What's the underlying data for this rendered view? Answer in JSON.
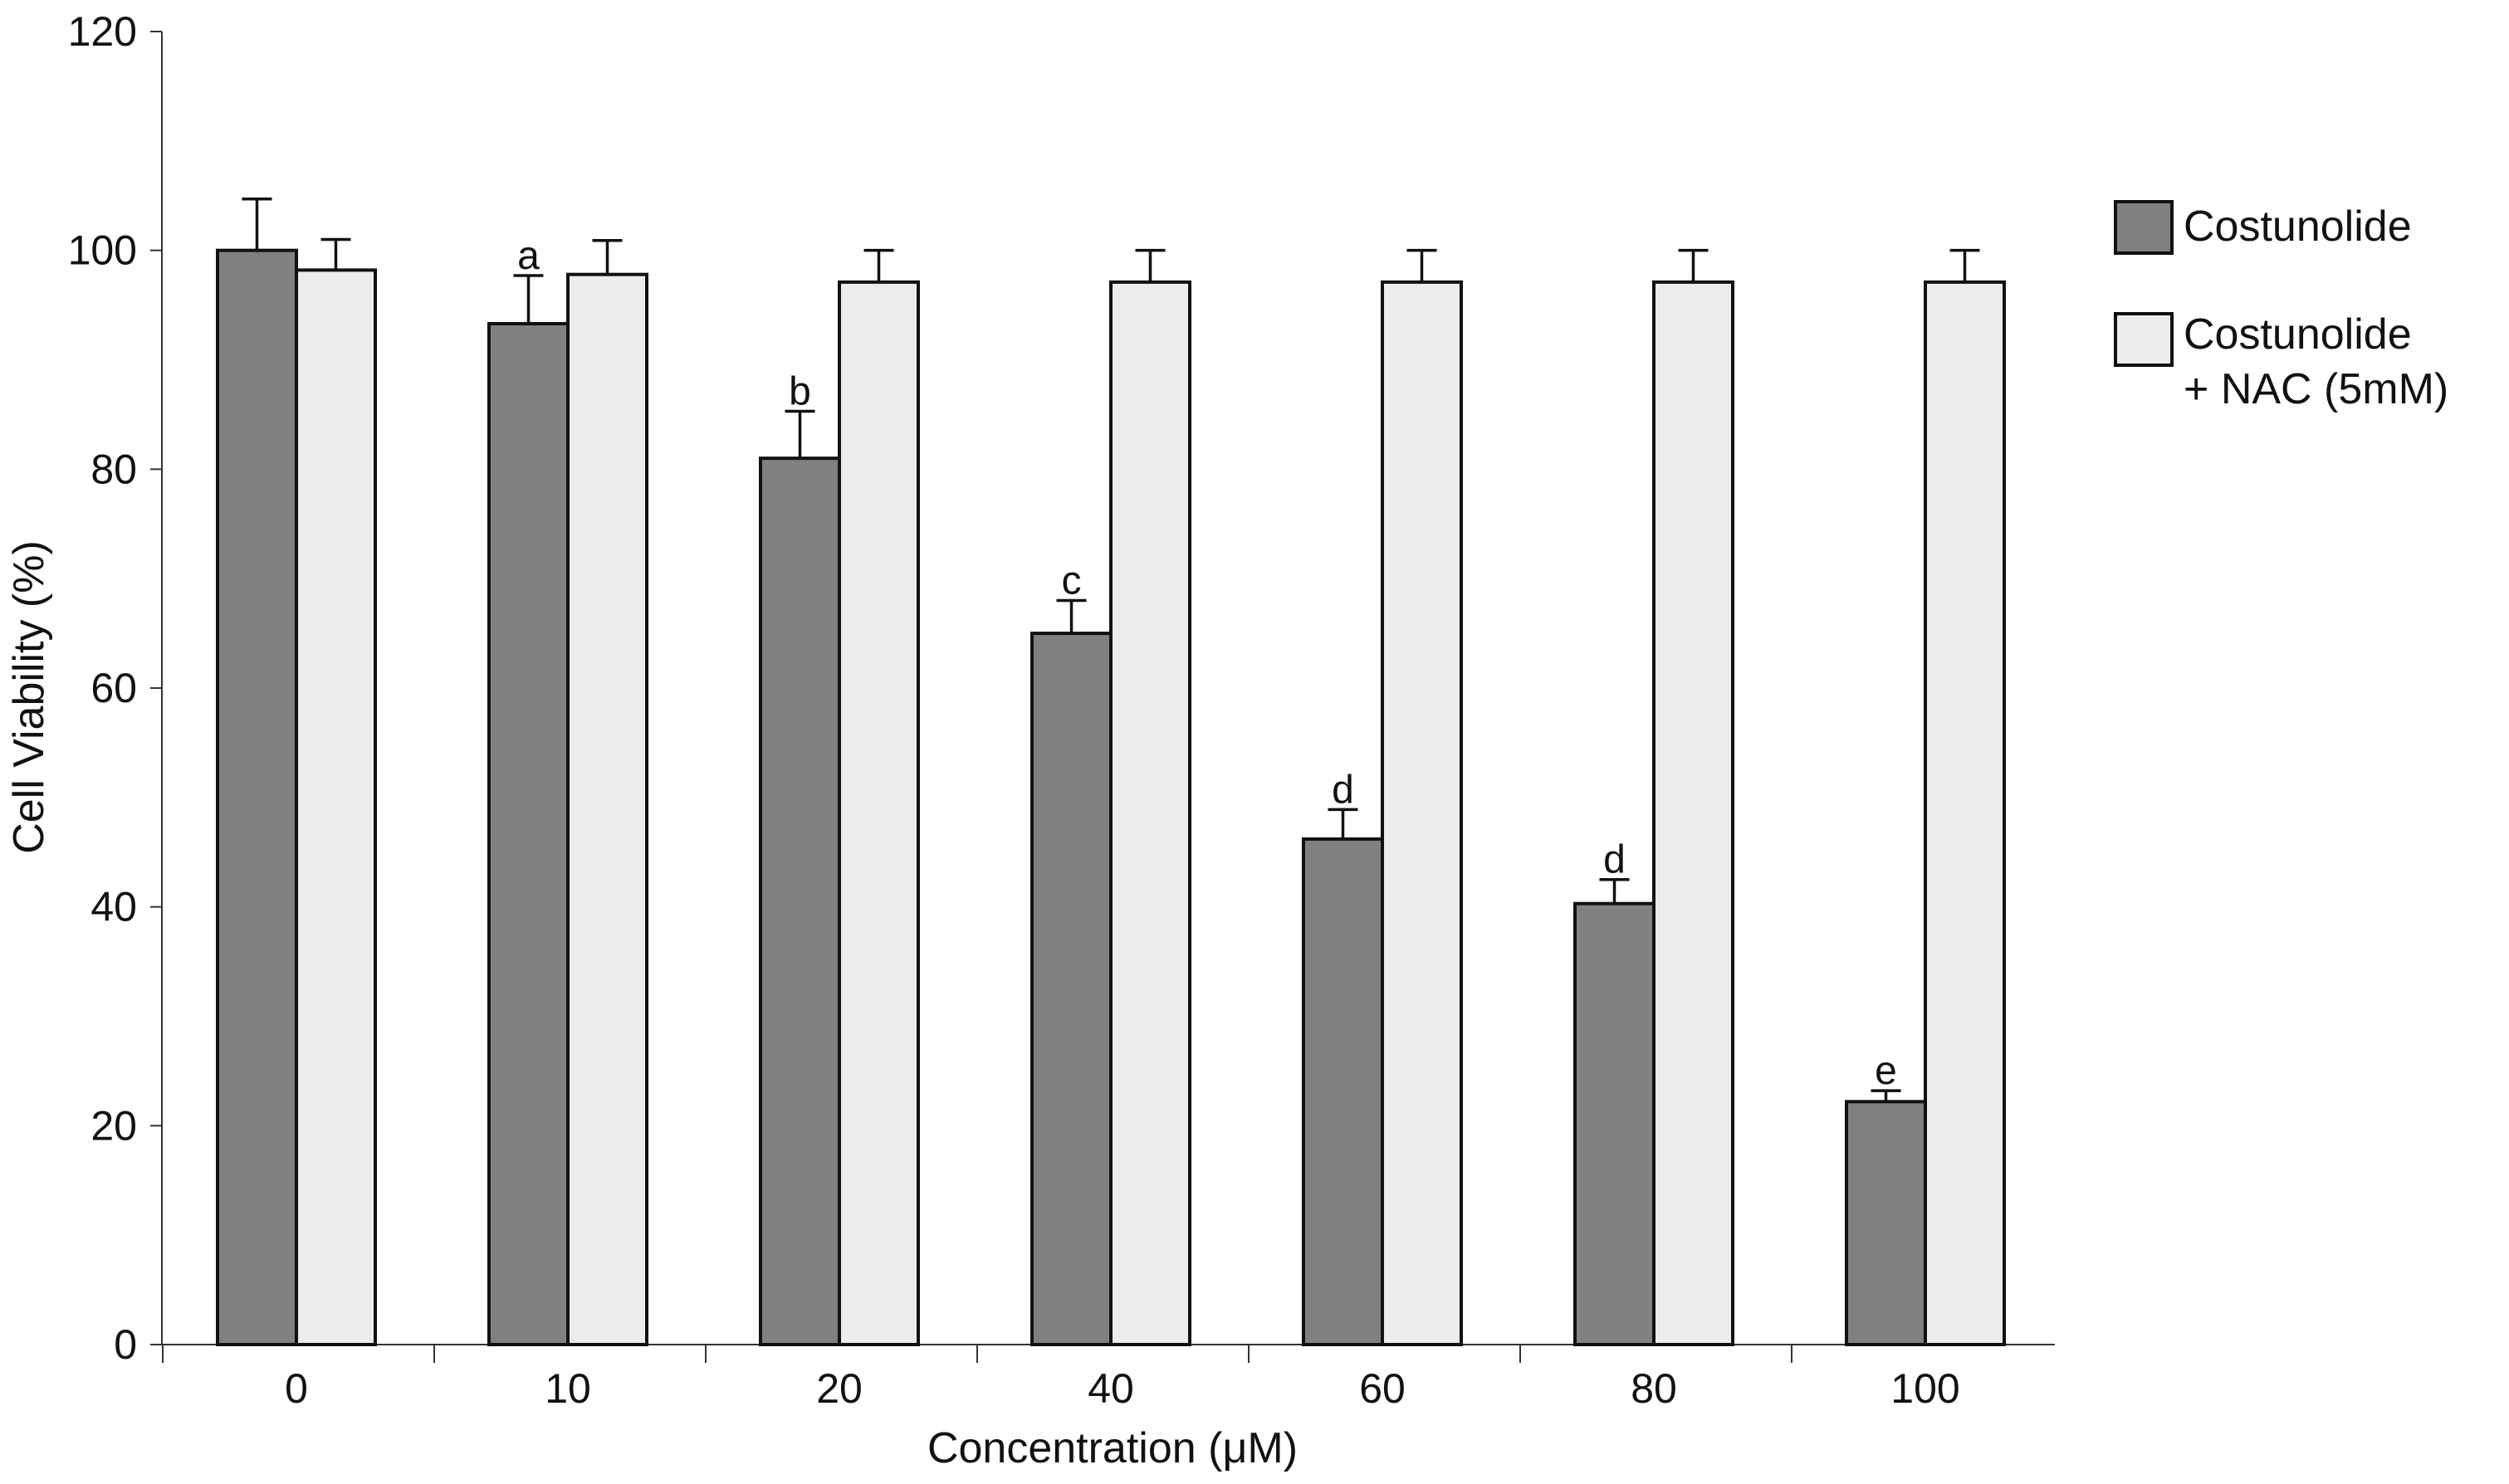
{
  "chart_data": {
    "type": "bar",
    "title": "",
    "xlabel": "Concentration (μM)",
    "ylabel": "Cell Viability (%)",
    "ylim": [
      0,
      120
    ],
    "yticks": [
      0,
      20,
      40,
      60,
      80,
      100,
      120
    ],
    "categories": [
      "0",
      "10",
      "20",
      "40",
      "60",
      "80",
      "100"
    ],
    "legend_position": "right",
    "series": [
      {
        "name": "Costunolide",
        "color": "#808080",
        "values": [
          100,
          93.3,
          81,
          65,
          46.2,
          40.3,
          22.2
        ],
        "errors": [
          4.7,
          4.4,
          4.3,
          3,
          2.7,
          2.2,
          1
        ],
        "labels": [
          "",
          "a",
          "b",
          "c",
          "d",
          "d",
          "e"
        ]
      },
      {
        "name": "Costunolide\n+ NAC (5mM)",
        "name_lines": [
          "Costunolide",
          "+ NAC (5mM)"
        ],
        "color": "#ececec",
        "values": [
          98.2,
          97.8,
          97.1,
          97.1,
          97.1,
          97.1,
          97.1
        ],
        "errors": [
          2.8,
          3.1,
          2.9,
          2.9,
          2.9,
          2.9,
          2.9
        ],
        "labels": [
          "",
          "",
          "",
          "",
          "",
          "",
          ""
        ]
      }
    ]
  }
}
